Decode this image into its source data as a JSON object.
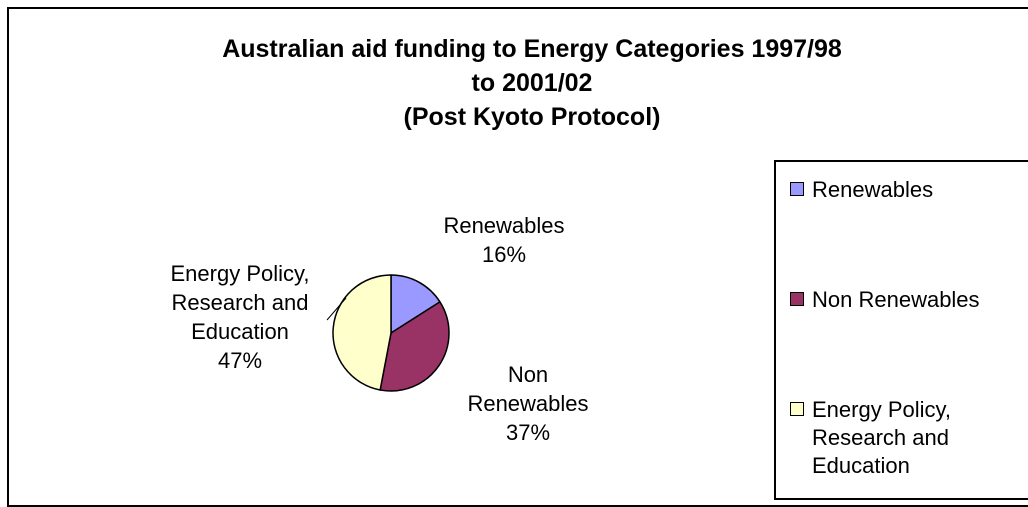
{
  "chart_data": {
    "type": "pie",
    "title": [
      "Australian aid funding to Energy Categories 1997/98",
      "to 2001/02",
      "(Post Kyoto Protocol)"
    ],
    "categories": [
      "Renewables",
      "Non Renewables",
      "Energy Policy, Research and Education"
    ],
    "values": [
      16,
      37,
      47
    ],
    "value_labels": [
      "16%",
      "37%",
      "47%"
    ],
    "slice_label_lines": [
      [
        "Renewables",
        "16%"
      ],
      [
        "Non",
        "Renewables",
        "37%"
      ],
      [
        "Energy Policy,",
        "Research and",
        "Education",
        "47%"
      ]
    ],
    "colors": [
      "#9999ff",
      "#993366",
      "#ffffcc"
    ],
    "legend": {
      "placement": "right",
      "labels": [
        "Renewables",
        "Non Renewables",
        "Energy Policy,\nResearch and\nEducation"
      ]
    }
  }
}
